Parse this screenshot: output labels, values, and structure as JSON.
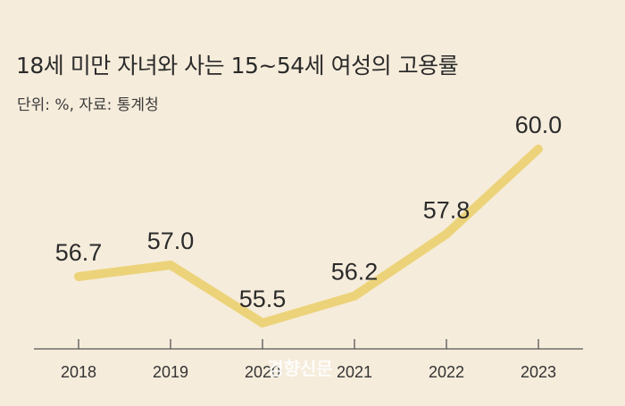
{
  "header": {
    "title": "18세 미만 자녀와 사는 15~54세 여성의 고용률",
    "subtitle": "단위: %, 자료: 통계청"
  },
  "watermark": "경향신문",
  "colors": {
    "background": "#f6ecdb",
    "line": "#ecd37a",
    "axis": "#555555"
  },
  "chart_data": {
    "type": "line",
    "title": "18세 미만 자녀와 사는 15~54세 여성의 고용률",
    "subtitle": "단위: %, 자료: 통계청",
    "xlabel": "",
    "ylabel": "",
    "grid": false,
    "categories": [
      "2018",
      "2019",
      "2020",
      "2021",
      "2022",
      "2023"
    ],
    "series": [
      {
        "name": "고용률",
        "values": [
          56.7,
          57.0,
          55.5,
          56.2,
          57.8,
          60.0
        ]
      }
    ],
    "value_labels": [
      "56.7",
      "57.0",
      "55.5",
      "56.2",
      "57.8",
      "60.0"
    ],
    "ylim": [
      54.3,
      60.6
    ]
  }
}
